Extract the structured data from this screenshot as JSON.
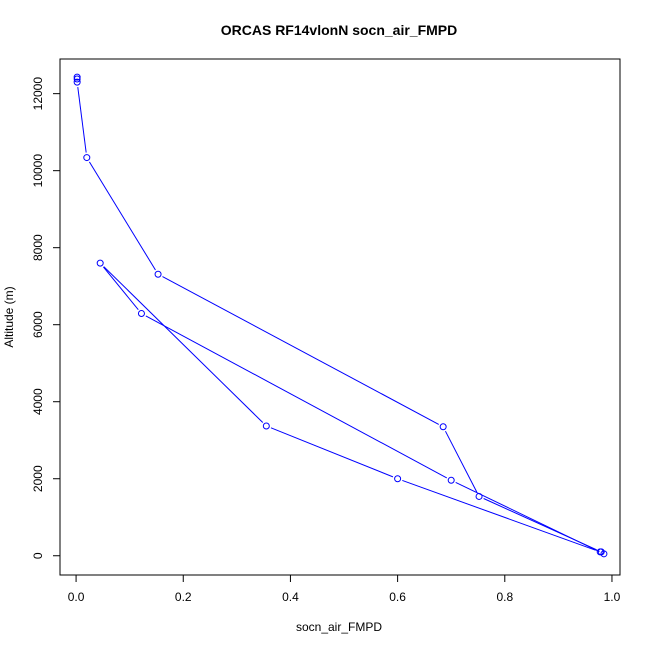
{
  "chart_data": {
    "type": "line",
    "title": "ORCAS RF14vlonN socn_air_FMPD",
    "xlabel": "socn_air_FMPD",
    "ylabel": "Altitude (m)",
    "xlim": [
      -0.03,
      1.015
    ],
    "ylim": [
      -500,
      12900
    ],
    "x_ticks": [
      0.0,
      0.2,
      0.4,
      0.6,
      0.8,
      1.0
    ],
    "x_tick_labels": [
      "0.0",
      "0.2",
      "0.4",
      "0.6",
      "0.8",
      "1.0"
    ],
    "y_ticks": [
      0,
      2000,
      4000,
      6000,
      8000,
      10000,
      12000
    ],
    "y_tick_labels": [
      "0",
      "2000",
      "4000",
      "6000",
      "8000",
      "10000",
      "12000"
    ],
    "grid": false,
    "legend": "none",
    "series_color": "#0000ff",
    "marker": "open-circle",
    "series": [
      {
        "x": [
          0.002,
          0.002,
          0.002,
          0.02,
          0.153,
          0.685,
          0.752,
          0.98,
          0.985,
          0.7,
          0.122,
          0.045,
          0.355,
          0.6,
          0.978
        ],
        "y": [
          12430,
          12380,
          12300,
          10340,
          7310,
          3350,
          1540,
          100,
          50,
          1960,
          6290,
          7600,
          3370,
          2000,
          100
        ]
      }
    ]
  }
}
